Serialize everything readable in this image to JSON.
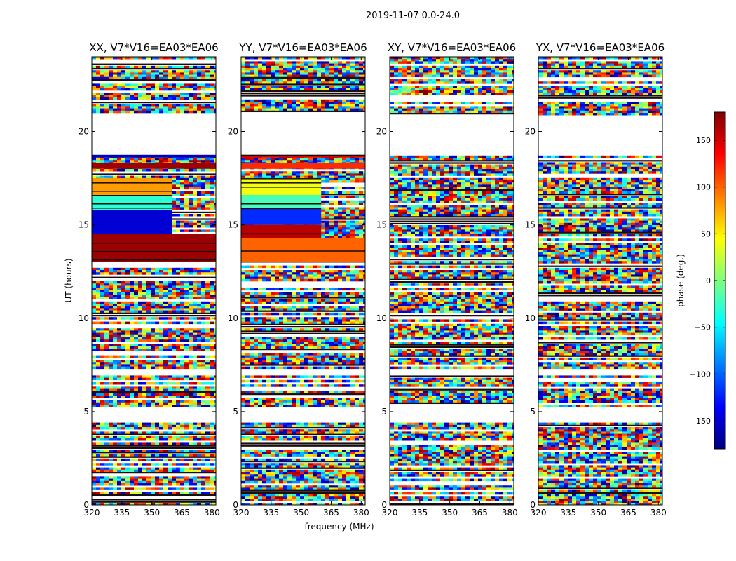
{
  "chart_data": {
    "type": "heatmap",
    "suptitle": "2019-11-07 0.0-24.0",
    "xlabel": "frequency (MHz)",
    "ylabel": "UT (hours)",
    "xlim": [
      320,
      382
    ],
    "ylim": [
      0,
      24
    ],
    "xticks": [
      "320",
      "335",
      "350",
      "365",
      "380"
    ],
    "xtick_values": [
      320,
      335,
      350,
      365,
      380
    ],
    "yticks": [
      "0",
      "5",
      "10",
      "15",
      "20"
    ],
    "ytick_values": [
      0,
      5,
      10,
      15,
      20
    ],
    "panels": [
      {
        "title": "XX, V7*V16=EA03*EA06",
        "bands": [
          {
            "t0": 13.0,
            "t1": 14.5,
            "f0": 320,
            "f1": 382,
            "phase": 170
          },
          {
            "t0": 14.5,
            "t1": 15.8,
            "f0": 320,
            "f1": 360,
            "phase": -150
          },
          {
            "t0": 15.8,
            "t1": 16.6,
            "f0": 320,
            "f1": 360,
            "phase": -30
          },
          {
            "t0": 16.6,
            "t1": 17.5,
            "f0": 320,
            "f1": 360,
            "phase": 80
          },
          {
            "t0": 18.0,
            "t1": 18.3,
            "f0": 320,
            "f1": 382,
            "phase": 170
          },
          {
            "t0": 18.6,
            "t1": 18.75,
            "f0": 320,
            "f1": 382,
            "phase": -160
          }
        ]
      },
      {
        "title": "YY, V7*V16=EA03*EA06",
        "bands": [
          {
            "t0": 13.0,
            "t1": 14.3,
            "f0": 320,
            "f1": 382,
            "phase": 100
          },
          {
            "t0": 14.3,
            "t1": 15.0,
            "f0": 320,
            "f1": 360,
            "phase": 160
          },
          {
            "t0": 15.0,
            "t1": 15.9,
            "f0": 320,
            "f1": 360,
            "phase": -120
          },
          {
            "t0": 15.9,
            "t1": 16.6,
            "f0": 320,
            "f1": 360,
            "phase": -20
          },
          {
            "t0": 16.6,
            "t1": 17.5,
            "f0": 320,
            "f1": 360,
            "phase": 40
          },
          {
            "t0": 18.0,
            "t1": 18.3,
            "f0": 320,
            "f1": 382,
            "phase": 120
          },
          {
            "t0": 18.6,
            "t1": 18.75,
            "f0": 320,
            "f1": 382,
            "phase": 150
          }
        ]
      },
      {
        "title": "XY, V7*V16=EA03*EA06",
        "bands": []
      },
      {
        "title": "YX, V7*V16=EA03*EA06",
        "bands": []
      }
    ],
    "gaps_hours": [
      [
        4.5,
        5.3
      ],
      [
        7.0,
        7.4
      ],
      [
        18.8,
        20.9
      ]
    ],
    "colorbar": {
      "label": "phase (deg.)",
      "range": [
        -180,
        180
      ],
      "ticks": [
        "150",
        "100",
        "50",
        "0",
        "−50",
        "−100",
        "−150"
      ],
      "tick_values": [
        150,
        100,
        50,
        0,
        -50,
        -100,
        -150
      ],
      "colormap": "jet"
    }
  }
}
